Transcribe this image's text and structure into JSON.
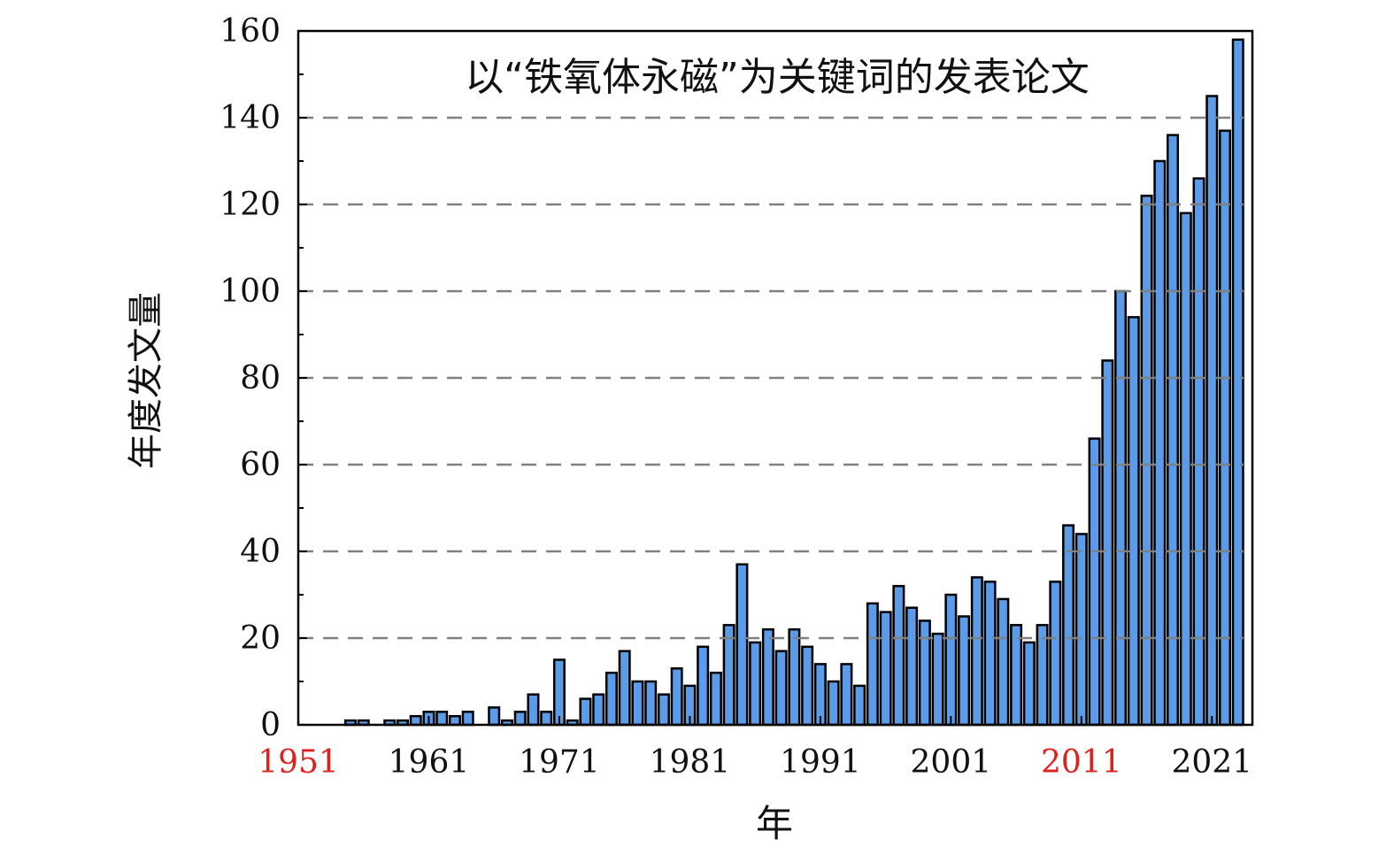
{
  "chart_data": {
    "type": "bar",
    "title": "以“铁氧体永磁”为关键词的发表论文",
    "xlabel": "年",
    "ylabel": "年度发文量",
    "ylim": [
      0,
      160
    ],
    "xlim": [
      1951,
      2024.1
    ],
    "yticks": [
      0,
      20,
      40,
      60,
      80,
      100,
      120,
      140,
      160
    ],
    "xticks": [
      1951,
      1961,
      1971,
      1981,
      1991,
      2001,
      2011,
      2021
    ],
    "highlighted_xticks": [
      1951,
      2011
    ],
    "grid": "horizontal dashed",
    "bar_color": "#5b9be8",
    "highlight_color": "#e0201a",
    "x": [
      1955,
      1956,
      1957,
      1958,
      1959,
      1960,
      1961,
      1962,
      1963,
      1964,
      1965,
      1966,
      1967,
      1968,
      1969,
      1970,
      1971,
      1972,
      1973,
      1974,
      1975,
      1976,
      1977,
      1978,
      1979,
      1980,
      1981,
      1982,
      1983,
      1984,
      1985,
      1986,
      1987,
      1988,
      1989,
      1990,
      1991,
      1992,
      1993,
      1994,
      1995,
      1996,
      1997,
      1998,
      1999,
      2000,
      2001,
      2002,
      2003,
      2004,
      2005,
      2006,
      2007,
      2008,
      2009,
      2010,
      2011,
      2012,
      2013,
      2014,
      2015,
      2016,
      2017,
      2018,
      2019,
      2020,
      2021,
      2022,
      2023
    ],
    "values": [
      1,
      1,
      0,
      1,
      1,
      2,
      3,
      3,
      2,
      3,
      0,
      4,
      1,
      3,
      7,
      3,
      15,
      1,
      6,
      7,
      12,
      17,
      10,
      10,
      7,
      13,
      9,
      18,
      12,
      23,
      37,
      19,
      22,
      17,
      22,
      18,
      14,
      10,
      14,
      9,
      28,
      26,
      32,
      27,
      24,
      21,
      30,
      25,
      34,
      33,
      29,
      23,
      19,
      23,
      33,
      46,
      44,
      66,
      84,
      100,
      94,
      122,
      130,
      136,
      118,
      126,
      145,
      137,
      158
    ]
  }
}
